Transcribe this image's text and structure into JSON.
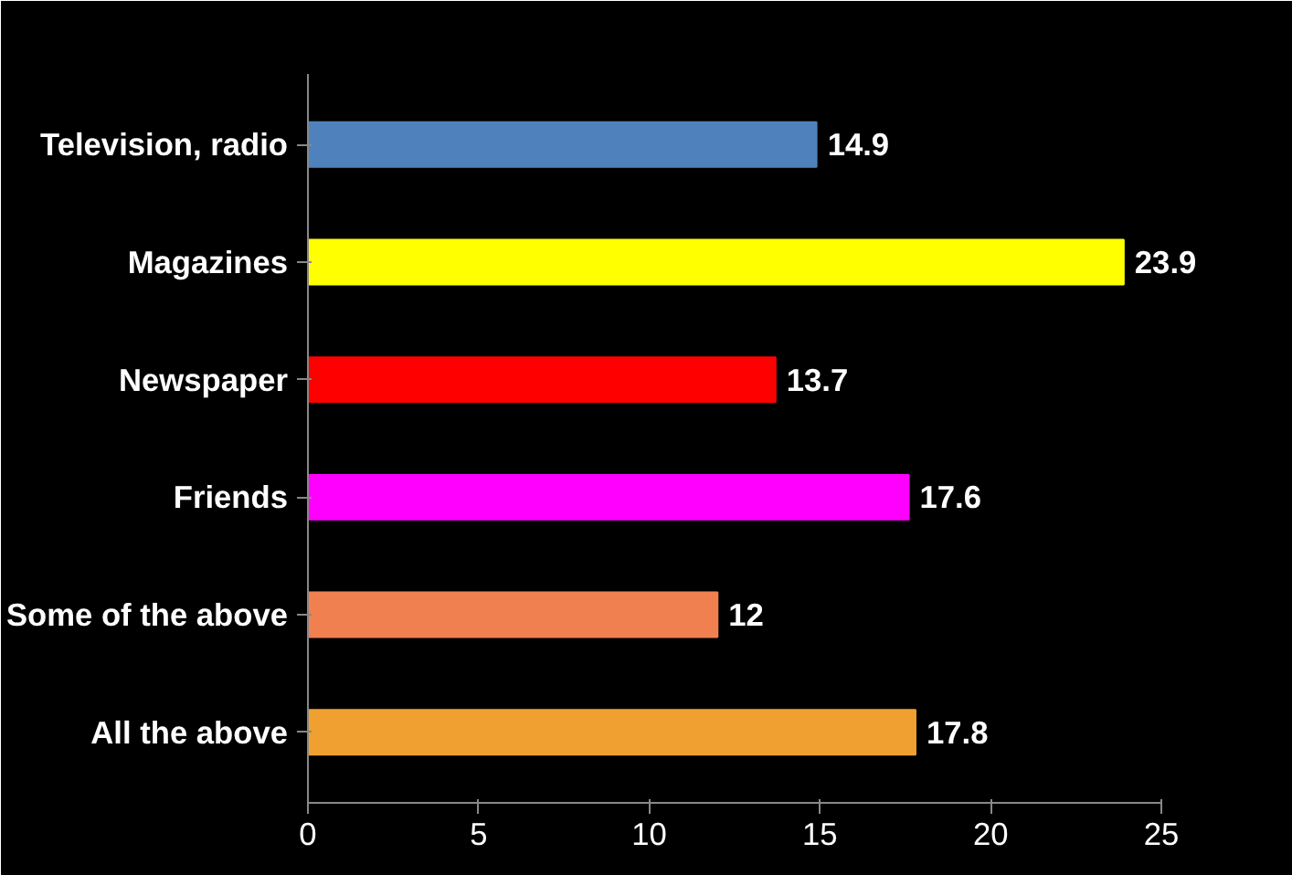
{
  "chart_data": {
    "type": "bar",
    "orientation": "horizontal",
    "categories": [
      "Television, radio",
      "Magazines",
      "Newspaper",
      "Friends",
      "Some of the above",
      "All the above"
    ],
    "values": [
      14.9,
      23.9,
      13.7,
      17.6,
      12,
      17.8
    ],
    "colors": [
      "#4f81bd",
      "#ffff00",
      "#ff0000",
      "#ff00ff",
      "#f08050",
      "#f0a030"
    ],
    "xlim": [
      0,
      25
    ],
    "xticks": [
      0,
      5,
      10,
      15,
      20,
      25
    ],
    "data_labels": true,
    "grid": false
  }
}
